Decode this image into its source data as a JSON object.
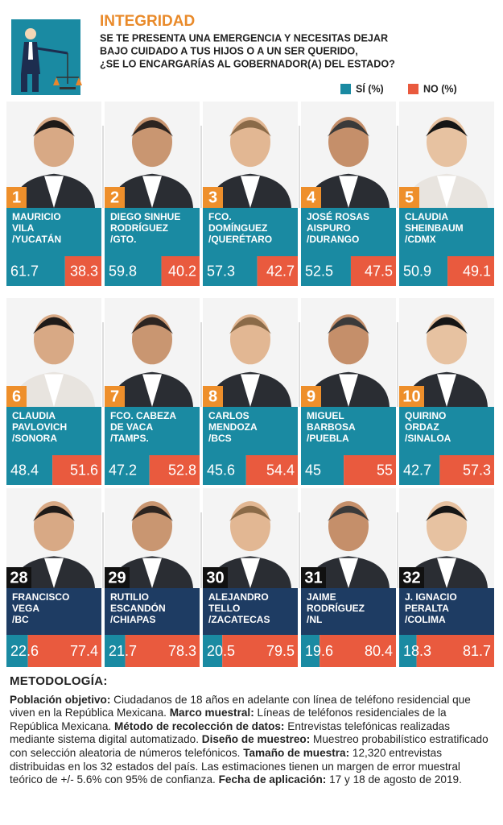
{
  "chart_data": {
    "type": "split-bar",
    "title": "INTEGRIDAD",
    "subtitle": [
      "SE TE PRESENTA UNA EMERGENCIA Y NECESITAS DEJAR",
      "BAJO CUIDADO A TUS HIJOS O A UN SER QUERIDO,",
      "¿SE LO ENCARGARÍAS AL GOBERNADOR(A) DEL ESTADO?"
    ],
    "candidates": [
      {
        "rank": "1",
        "name": [
          "MAURICIO",
          "VILA"
        ],
        "state": "/YUCATÁN"
      },
      {
        "rank": "2",
        "name": [
          "DIEGO SINHUE",
          "RODRÍGUEZ"
        ],
        "state": "/GTO."
      },
      {
        "rank": "3",
        "name": [
          "FCO.",
          "DOMÍNGUEZ"
        ],
        "state": "/QUERÉTARO"
      },
      {
        "rank": "4",
        "name": [
          "JOSÉ ROSAS",
          "AISPURO"
        ],
        "state": "/DURANGO"
      },
      {
        "rank": "5",
        "name": [
          "CLAUDIA",
          "SHEINBAUM"
        ],
        "state": "/CDMX"
      },
      {
        "rank": "6",
        "name": [
          "CLAUDIA",
          "PAVLOVICH"
        ],
        "state": "/SONORA"
      },
      {
        "rank": "7",
        "name": [
          "FCO. CABEZA",
          "DE VACA"
        ],
        "state": "/TAMPS."
      },
      {
        "rank": "8",
        "name": [
          "CARLOS",
          "MENDOZA"
        ],
        "state": "/BCS"
      },
      {
        "rank": "9",
        "name": [
          "MIGUEL",
          "BARBOSA"
        ],
        "state": "/PUEBLA"
      },
      {
        "rank": "10",
        "name": [
          "QUIRINO",
          "ORDAZ"
        ],
        "state": "/SINALOA"
      },
      {
        "rank": "28",
        "name": [
          "FRANCISCO",
          "VEGA"
        ],
        "state": "/BC"
      },
      {
        "rank": "29",
        "name": [
          "RUTILIO",
          "ESCANDÓN"
        ],
        "state": "/CHIAPAS"
      },
      {
        "rank": "30",
        "name": [
          "ALEJANDRO",
          "TELLO"
        ],
        "state": "/ZACATECAS"
      },
      {
        "rank": "31",
        "name": [
          "JAIME",
          "RODRÍGUEZ"
        ],
        "state": "/NL"
      },
      {
        "rank": "32",
        "name": [
          "J. IGNACIO",
          "PERALTA"
        ],
        "state": "/COLIMA"
      }
    ],
    "series": [
      {
        "name": "SÍ (%)",
        "color": "#1a8aa2",
        "values": [
          61.7,
          59.8,
          57.3,
          52.5,
          50.9,
          48.4,
          47.2,
          45.6,
          45,
          42.7,
          22.6,
          21.7,
          20.5,
          19.6,
          18.3
        ]
      },
      {
        "name": "NO (%)",
        "color": "#e95a3e",
        "values": [
          38.3,
          40.2,
          42.7,
          47.5,
          49.1,
          51.6,
          52.8,
          54.4,
          55,
          57.3,
          77.4,
          78.3,
          79.5,
          80.4,
          81.7
        ]
      }
    ]
  },
  "methodology": {
    "heading": "METODOLOGÍA:",
    "paragraph": [
      {
        "label": "Población objetivo:",
        "text": "Ciudadanos de 18 años en adelante con línea de teléfono residencial que viven en la República Mexicana."
      },
      {
        "label": "Marco muestral:",
        "text": "Líneas de teléfonos residenciales de la República Mexicana."
      },
      {
        "label": "Método de recolección de datos:",
        "text": "Entrevistas telefónicas realizadas mediante sistema digital automatizado."
      },
      {
        "label": "Diseño de muestreo:",
        "text": "Muestreo probabilístico estratificado con selección aleatoria de números telefónicos."
      },
      {
        "label": "Tamaño de muestra:",
        "text": "12,320 entrevistas distribuidas en los 32 estados del país. Las estimaciones tienen un margen de error muestral teórico de +/- 5.6% con 95% de confianza."
      },
      {
        "label": "Fecha de aplicación:",
        "text": "17 y 18 de agosto de 2019."
      }
    ]
  }
}
